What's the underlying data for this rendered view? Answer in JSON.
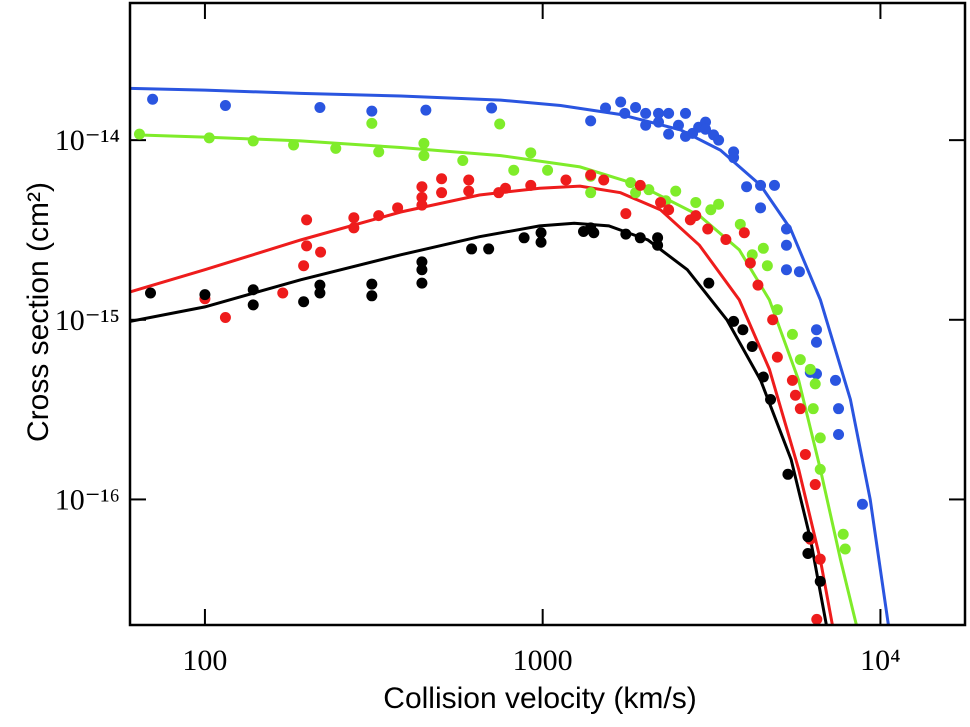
{
  "chart_data": {
    "type": "scatter",
    "x_label": "Collision velocity (km/s)",
    "y_label": "Cross section (cm²)",
    "log_x": true,
    "log_y": true,
    "xlim": [
      60,
      17800
    ],
    "ylim": [
      2e-17,
      5.8e-14
    ],
    "xticks": [
      100,
      1000,
      {
        "value": 10000,
        "label": "10⁴"
      }
    ],
    "yticks": [
      {
        "value": 1e-16,
        "label": "10⁻¹⁶"
      },
      {
        "value": 1e-15,
        "label": "10⁻¹⁵"
      },
      {
        "value": 1e-14,
        "label": "10⁻¹⁴"
      }
    ],
    "series": [
      {
        "color": "#2a55e0",
        "x": [
          70,
          115,
          219,
          312,
          451,
          706,
          1387,
          1535,
          1702,
          1750,
          1884,
          2018,
          2018,
          2203,
          2203,
          2360,
          2360,
          2524,
          2648,
          2648,
          2779,
          2896,
          3035,
          3035,
          3206,
          3318,
          3675,
          3675,
          4016,
          4416,
          4416,
          4856,
          5270,
          5270,
          5270,
          5757,
          6467,
          6467,
          6200,
          6467,
          7362,
          7516,
          7516,
          8846
        ],
        "values": [
          1.69e-14,
          1.56e-14,
          1.52e-14,
          1.45e-14,
          1.47e-14,
          1.51e-14,
          1.28e-14,
          1.51e-14,
          1.63e-14,
          1.41e-14,
          1.52e-14,
          1.41e-14,
          1.21e-14,
          1.41e-14,
          1.26e-14,
          1.41e-14,
          1.08e-14,
          1.21e-14,
          1.41e-14,
          1.05e-14,
          1.09e-14,
          1.18e-14,
          1.26e-14,
          1.15e-14,
          1.07e-14,
          1e-14,
          8.6e-15,
          8e-15,
          5.5e-15,
          4.2e-15,
          5.6e-15,
          5.6e-15,
          3.2e-15,
          2.6e-15,
          1.9e-15,
          1.85e-15,
          8.8e-16,
          7.5e-16,
          5.1e-16,
          5e-16,
          4.6e-16,
          3.2e-16,
          2.3e-16,
          9.4e-17
        ]
      },
      {
        "color": "#7fec2a",
        "x": [
          64,
          103,
          139,
          183,
          244,
          312,
          327,
          445,
          445,
          580,
          746,
          821,
          922,
          1034,
          1387,
          1387,
          1822,
          1884,
          2062,
          2314,
          2477,
          2840,
          3146,
          3318,
          3847,
          4173,
          4501,
          4626,
          4953,
          5488,
          5792,
          6200,
          6412,
          6325,
          6635,
          6635,
          7759,
          7869
        ],
        "values": [
          1.08e-14,
          1.03e-14,
          9.9e-15,
          9.4e-15,
          9e-15,
          1.24e-14,
          8.6e-15,
          9.6e-15,
          8.2e-15,
          7.7e-15,
          1.23e-14,
          6.8e-15,
          8.5e-15,
          6.8e-15,
          6.3e-15,
          5.1e-15,
          5.8e-15,
          5.1e-15,
          5.3e-15,
          4.6e-15,
          5.2e-15,
          4.5e-15,
          4.1e-15,
          4.4e-15,
          3.4e-15,
          2.3e-15,
          2.5e-15,
          2e-15,
          1.14e-15,
          8.3e-16,
          6e-16,
          5.3e-16,
          4.4e-16,
          3.2e-16,
          2.2e-16,
          1.47e-16,
          6.4e-17,
          5.3e-17
        ]
      },
      {
        "color": "#ee1c1c",
        "x": [
          100,
          115,
          170,
          196,
          200,
          200,
          220,
          276,
          276,
          327,
          372,
          439,
          439,
          439,
          502,
          502,
          604,
          604,
          741,
          776,
          922,
          1172,
          1387,
          1516,
          1763,
          1945,
          2234,
          2360,
          2737,
          2840,
          3081,
          3487,
          3954,
          4120,
          4340,
          4797,
          4953,
          5488,
          5603,
          5792,
          5996,
          6412,
          6200,
          6635,
          6480
        ],
        "values": [
          1.31e-15,
          1.03e-15,
          1.41e-15,
          2e-15,
          2.58e-15,
          3.6e-15,
          2.38e-15,
          3.25e-15,
          3.7e-15,
          3.8e-15,
          4.2e-15,
          4.35e-15,
          4.8e-15,
          5.5e-15,
          6.1e-15,
          5.1e-15,
          5.2e-15,
          6e-15,
          5.1e-15,
          5.4e-15,
          5.6e-15,
          6e-15,
          6.4e-15,
          6e-15,
          3.9e-15,
          5.6e-15,
          4.5e-15,
          4.1e-15,
          3.6e-15,
          3.8e-15,
          3.2e-15,
          2.8e-15,
          3.05e-15,
          2.07e-15,
          1.56e-15,
          1e-15,
          6.2e-16,
          4.6e-16,
          3.8e-16,
          3.2e-16,
          1.78e-16,
          1.21e-16,
          6e-17,
          4.65e-17,
          2.15e-17
        ]
      },
      {
        "color": "#000000",
        "x": [
          69,
          100,
          139,
          139,
          196,
          219,
          219,
          312,
          312,
          439,
          439,
          439,
          616,
          692,
          881,
          989,
          989,
          1321,
          1387,
          1417,
          1763,
          1945,
          2189,
          2189,
          3104,
          3675,
          3915,
          4173,
          4501,
          4728,
          5323,
          6100,
          6100,
          6635
        ],
        "values": [
          1.41e-15,
          1.38e-15,
          1.47e-15,
          1.21e-15,
          1.26e-15,
          1.41e-15,
          1.56e-15,
          1.36e-15,
          1.58e-15,
          1.6e-15,
          1.9e-15,
          2.1e-15,
          2.48e-15,
          2.48e-15,
          2.86e-15,
          2.7e-15,
          3.05e-15,
          3.1e-15,
          3.25e-15,
          3.05e-15,
          3e-15,
          2.86e-15,
          2.86e-15,
          2.6e-15,
          1.6e-15,
          9.8e-16,
          8.8e-16,
          7.1e-16,
          4.8e-16,
          3.6e-16,
          1.38e-16,
          6.2e-17,
          5e-17,
          3.5e-17
        ]
      }
    ],
    "curves": [
      {
        "color": "#2a55e0",
        "x": [
          60,
          100,
          192,
          380,
          751,
          1130,
          1700,
          2560,
          3360,
          4420,
          5420,
          6640,
          8150,
          9330,
          10560
        ],
        "values": [
          1.94e-14,
          1.9e-14,
          1.82e-14,
          1.76e-14,
          1.67e-14,
          1.56e-14,
          1.39e-14,
          1.14e-14,
          8.8e-15,
          5.6e-15,
          3.2e-15,
          1.29e-15,
          3.6e-16,
          1e-16,
          2e-17
        ]
      },
      {
        "color": "#7fec2a",
        "x": [
          62.5,
          100,
          192,
          380,
          751,
          1290,
          1940,
          2910,
          3820,
          4690,
          5730,
          6640,
          7620,
          8490
        ],
        "values": [
          1.07e-14,
          1.04e-14,
          9.9e-15,
          9.1e-15,
          8.2e-15,
          7.1e-15,
          5.6e-15,
          3.8e-15,
          2.45e-15,
          1.29e-15,
          4.6e-16,
          1.47e-16,
          4.6e-17,
          2e-17
        ]
      },
      {
        "color": "#ee1c1c",
        "x": [
          60,
          100,
          192,
          380,
          650,
          980,
          1290,
          1700,
          2230,
          2910,
          3820,
          4690,
          5730,
          6640,
          7210
        ],
        "values": [
          1.43e-15,
          1.9e-15,
          2.78e-15,
          3.98e-15,
          4.95e-15,
          5.4e-15,
          5.55e-15,
          5.1e-15,
          4.1e-15,
          2.6e-15,
          1.29e-15,
          5.3e-16,
          1.47e-16,
          4.6e-17,
          2e-17
        ]
      },
      {
        "color": "#000000",
        "x": [
          60,
          100,
          192,
          380,
          650,
          980,
          1240,
          1570,
          2050,
          2680,
          3510,
          4420,
          5440,
          6210,
          6920
        ],
        "values": [
          9.8e-16,
          1.18e-15,
          1.67e-15,
          2.3e-15,
          2.9e-15,
          3.33e-15,
          3.45e-15,
          3.33e-15,
          2.78e-15,
          1.9e-15,
          1e-15,
          4.6e-16,
          1.67e-16,
          6e-17,
          2e-17
        ]
      }
    ]
  }
}
